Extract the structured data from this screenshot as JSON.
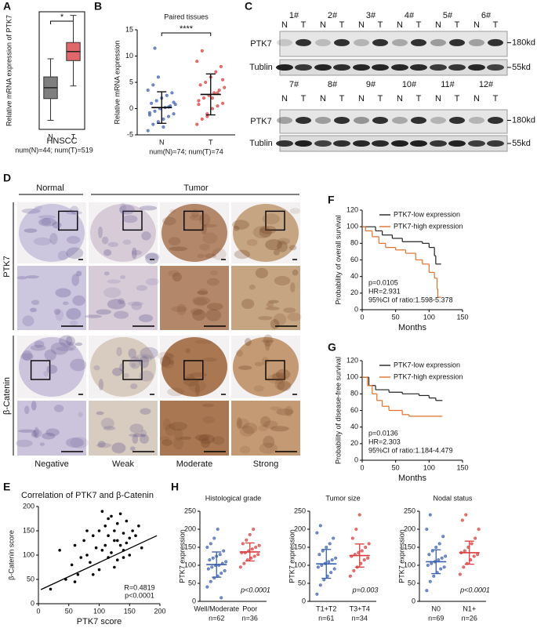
{
  "figure": {
    "panel_labels": [
      "A",
      "B",
      "C",
      "D",
      "E",
      "F",
      "G",
      "H"
    ],
    "western_blot": {
      "samples": [
        "1#",
        "2#",
        "3#",
        "4#",
        "5#",
        "6#",
        "7#",
        "8#",
        "9#",
        "10#",
        "11#",
        "12#"
      ],
      "lanes": [
        "N",
        "T"
      ],
      "rows": [
        "PTK7",
        "Tublin"
      ],
      "sizes": [
        "180kd",
        "55kd"
      ]
    },
    "ihc": {
      "groups": [
        "Normal",
        "Tumor"
      ],
      "rows": [
        "PTK7",
        "β-Catenin"
      ],
      "grades": [
        "Negative",
        "Weak",
        "Moderate",
        "Strong"
      ]
    }
  },
  "chart_data": [
    {
      "type": "box",
      "ylabel": "Relative mRNA expression of PTK7",
      "categories": [
        "N",
        "T"
      ],
      "xlabel": "HNSCC",
      "note": "num(N)=44; num(T)=519",
      "significance": "*",
      "ylim": [
        2,
        8.5
      ],
      "boxes": [
        {
          "color": "#7f7f7f",
          "whisker_low": 2.5,
          "q1": 3.7,
          "median": 4.3,
          "q3": 4.9,
          "whisker_high": 5.9
        },
        {
          "color": "#e0686a",
          "whisker_low": 4.4,
          "q1": 5.8,
          "median": 6.3,
          "q3": 6.8,
          "whisker_high": 8.3
        }
      ]
    },
    {
      "type": "dot",
      "title": "Paired tissues",
      "ylabel": "Relative mRNA expression",
      "categories": [
        "N",
        "T"
      ],
      "note": "num(N)=74; num(T)=74",
      "significance": "****",
      "ylim": [
        -5,
        15
      ],
      "yticks": [
        -5,
        0,
        5,
        10,
        15
      ],
      "summary_color": "#000000",
      "groups": [
        {
          "color": "#3a5fb0",
          "mean": 0.2,
          "sd": 3.0,
          "values": [
            -4.2,
            -3,
            -2.5,
            -2,
            -1.5,
            -1,
            -0.8,
            -0.5,
            0,
            0.2,
            0.5,
            0.8,
            1,
            1.5,
            2,
            2.5,
            3,
            3.5,
            4.5,
            6,
            -3.5,
            0.3,
            1.2,
            -1.2,
            11.5
          ]
        },
        {
          "color": "#d93b3b",
          "mean": 2.7,
          "sd": 3.9,
          "values": [
            -3,
            -2,
            -1,
            0,
            0.5,
            1,
            1.5,
            2,
            2.5,
            3,
            3.5,
            4,
            4.5,
            5,
            6,
            7,
            8,
            9,
            11,
            -1.5,
            2,
            3,
            5.5,
            0.8
          ]
        }
      ]
    },
    {
      "type": "scatter",
      "title": "Correlation of PTK7 and β-Catenin",
      "xlabel": "PTK7 score",
      "ylabel": "β-Catenin score",
      "stats": [
        "R=0.4819",
        "p<0.0001"
      ],
      "color": "#000000",
      "xlim": [
        0,
        200
      ],
      "xticks": [
        0,
        50,
        100,
        150,
        200
      ],
      "ylim": [
        0,
        200
      ],
      "yticks": [
        0,
        50,
        100,
        150,
        200
      ],
      "x": [
        20,
        35,
        45,
        55,
        60,
        65,
        70,
        75,
        80,
        85,
        90,
        95,
        100,
        100,
        105,
        110,
        110,
        115,
        115,
        120,
        120,
        125,
        125,
        130,
        130,
        135,
        135,
        140,
        140,
        145,
        145,
        150,
        150,
        155,
        160,
        165,
        170,
        90,
        105,
        125,
        140,
        115,
        60,
        80,
        130
      ],
      "values": [
        30,
        110,
        50,
        80,
        120,
        60,
        95,
        130,
        100,
        85,
        140,
        115,
        70,
        150,
        110,
        120,
        160,
        95,
        140,
        105,
        180,
        130,
        150,
        90,
        165,
        120,
        185,
        110,
        145,
        125,
        170,
        135,
        100,
        150,
        140,
        160,
        115,
        60,
        190,
        75,
        95,
        175,
        45,
        150,
        130
      ],
      "fit_line": {
        "x": [
          4,
          195
        ],
        "y": [
          29,
          140
        ]
      }
    },
    {
      "type": "km",
      "xlabel": "Months",
      "ylabel": "Probability of overall survival",
      "stats": [
        "p=0.0105",
        "HR=2.931",
        "95%CI of ratio:1.598-5.378"
      ],
      "xlim": [
        0,
        150
      ],
      "xticks": [
        0,
        50,
        100,
        150
      ],
      "ylim": [
        0,
        120
      ],
      "yticks": [
        0,
        20,
        40,
        60,
        80,
        100,
        120
      ],
      "series": [
        {
          "name": "PTK7-low expression",
          "color": "#222222",
          "x": [
            0,
            20,
            30,
            45,
            60,
            90,
            100,
            108,
            110,
            118
          ],
          "values": [
            100,
            95,
            90,
            86,
            82,
            80,
            75,
            65,
            55,
            55
          ]
        },
        {
          "name": "PTK7-high expression",
          "color": "#e0702a",
          "x": [
            0,
            5,
            15,
            25,
            35,
            50,
            65,
            80,
            90,
            100,
            108,
            112,
            113,
            118
          ],
          "values": [
            100,
            95,
            88,
            80,
            75,
            72,
            68,
            60,
            55,
            45,
            38,
            25,
            15,
            15
          ]
        }
      ]
    },
    {
      "type": "km",
      "xlabel": "Months",
      "ylabel": "Probability of disease-free survival",
      "stats": [
        "p=0.0136",
        "HR=2.303",
        "95%CI of ratio:1.184-4.479"
      ],
      "xlim": [
        0,
        150
      ],
      "xticks": [
        0,
        50,
        100,
        150
      ],
      "ylim": [
        0,
        120
      ],
      "yticks": [
        0,
        20,
        40,
        60,
        80,
        100,
        120
      ],
      "series": [
        {
          "name": "PTK7-low expression",
          "color": "#222222",
          "x": [
            0,
            10,
            20,
            40,
            60,
            85,
            100,
            110,
            120
          ],
          "values": [
            100,
            90,
            85,
            82,
            80,
            78,
            75,
            72,
            72
          ]
        },
        {
          "name": "PTK7-high expression",
          "color": "#e0702a",
          "x": [
            0,
            8,
            15,
            22,
            30,
            40,
            60,
            70,
            120
          ],
          "values": [
            100,
            90,
            80,
            72,
            65,
            60,
            55,
            53,
            53
          ]
        }
      ]
    },
    {
      "type": "dot",
      "title": "Histological grade",
      "ylabel": "PTK7 expression",
      "categories": [
        "Well/Moderate",
        "Poor"
      ],
      "category_notes": [
        "n=62",
        "n=36"
      ],
      "p_label": "p<0.0001",
      "ylim": [
        0,
        250
      ],
      "yticks": [
        0,
        50,
        100,
        150,
        200,
        250
      ],
      "groups": [
        {
          "color": "#3a5fb0",
          "mean": 102,
          "sd": 35,
          "values": [
            40,
            55,
            65,
            70,
            78,
            85,
            90,
            95,
            100,
            100,
            105,
            110,
            115,
            120,
            125,
            130,
            140,
            150,
            160,
            175,
            200,
            10
          ]
        },
        {
          "color": "#d93b3b",
          "mean": 137,
          "sd": 25,
          "values": [
            95,
            105,
            115,
            120,
            125,
            130,
            135,
            135,
            140,
            145,
            150,
            155,
            160,
            170,
            185,
            200
          ]
        }
      ]
    },
    {
      "type": "dot",
      "title": "Tumor size",
      "ylabel": "PTK7 expression",
      "categories": [
        "T1+T2",
        "T3+T4"
      ],
      "category_notes": [
        "n=61",
        "n=34"
      ],
      "p_label": "p=0.003",
      "ylim": [
        0,
        250
      ],
      "yticks": [
        0,
        50,
        100,
        150,
        200,
        250
      ],
      "groups": [
        {
          "color": "#3a5fb0",
          "mean": 104,
          "sd": 40,
          "values": [
            20,
            45,
            60,
            70,
            80,
            90,
            95,
            100,
            105,
            110,
            115,
            120,
            130,
            140,
            150,
            160,
            175,
            190,
            210
          ]
        },
        {
          "color": "#d93b3b",
          "mean": 127,
          "sd": 32,
          "values": [
            70,
            85,
            95,
            105,
            115,
            120,
            125,
            130,
            135,
            140,
            150,
            160,
            175,
            200,
            240
          ]
        }
      ]
    },
    {
      "type": "dot",
      "title": "Nodal status",
      "ylabel": "PTK7 expression",
      "categories": [
        "N0",
        "N1+"
      ],
      "category_notes": [
        "n=69",
        "n=26"
      ],
      "p_label": "p<0.0001",
      "ylim": [
        0,
        250
      ],
      "yticks": [
        0,
        50,
        100,
        150,
        200,
        250
      ],
      "groups": [
        {
          "color": "#3a5fb0",
          "mean": 110,
          "sd": 33,
          "values": [
            30,
            55,
            70,
            80,
            90,
            95,
            100,
            105,
            110,
            115,
            120,
            125,
            130,
            140,
            150,
            160,
            180,
            200,
            240
          ]
        },
        {
          "color": "#d93b3b",
          "mean": 135,
          "sd": 32,
          "values": [
            75,
            95,
            105,
            115,
            125,
            130,
            135,
            140,
            150,
            160,
            175,
            200,
            225,
            240
          ]
        }
      ]
    }
  ]
}
